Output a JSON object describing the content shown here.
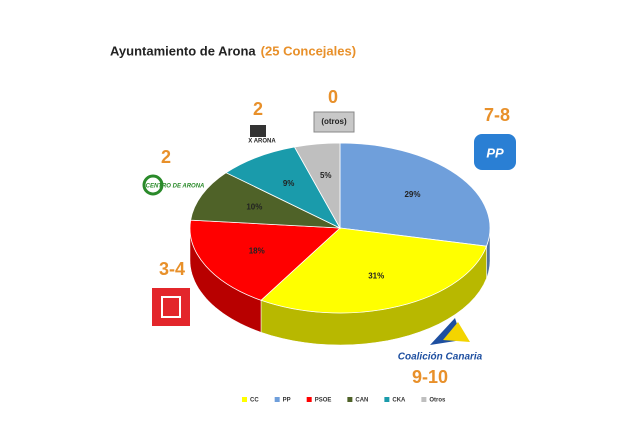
{
  "chart_data": {
    "type": "pie3d",
    "title": "Ayuntamiento de Arona",
    "subtitle": "(25 Concejales)",
    "categories": [
      "CC",
      "PP",
      "PSOE",
      "CAN",
      "CKA",
      "Otros"
    ],
    "values": [
      31,
      29,
      18,
      10,
      9,
      5
    ],
    "value_labels": [
      "31%",
      "29%",
      "18%",
      "10%",
      "9%",
      "5%"
    ],
    "colors": [
      "#ffff00",
      "#6f9fdb",
      "#ff0000",
      "#4f6228",
      "#1a9bab",
      "#bfbfbf"
    ],
    "legend": "bottom",
    "annotations": [
      "7-8",
      "9-10",
      "3-4",
      "2",
      "2",
      "0",
      "(otros)",
      "Coalición Canaria",
      "CENTRO DE ARONA",
      "X ARONA",
      "PP"
    ]
  }
}
